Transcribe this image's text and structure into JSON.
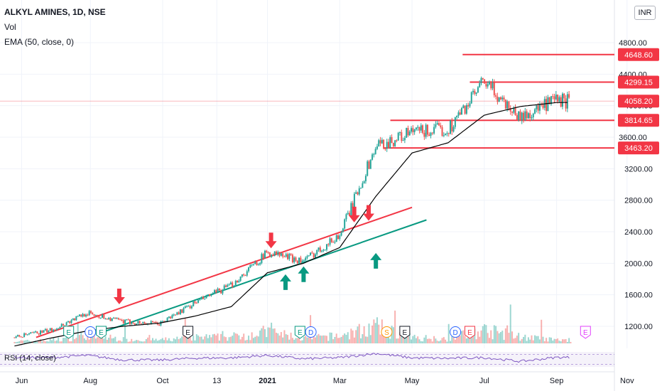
{
  "legend": {
    "title": "ALKYL AMINES, 1D, NSE",
    "vol": "Vol",
    "ema": "EMA (50, close, 0)"
  },
  "currency": "INR",
  "colors": {
    "up": "#26a69a",
    "down": "#ef5350",
    "level": "#f23645",
    "channel_upper": "#f23645",
    "channel_lower": "#089981",
    "ema": "#000000",
    "rsi": "#7e57c2",
    "grid": "#f0f3fa",
    "axis_text": "#131722"
  },
  "chart_data": [
    {
      "type": "line",
      "title": "ALKYL AMINES, 1D, NSE",
      "x_ticks": [
        "Jun",
        "Aug",
        "Oct",
        "13",
        "2021",
        "Mar",
        "May",
        "Jul",
        "Sep",
        "Nov"
      ],
      "y_ticks": [
        1200,
        1600,
        2000,
        2400,
        2800,
        3200,
        3600,
        4000,
        4400,
        4800
      ],
      "ylim": [
        1050,
        5050
      ],
      "price_series": {
        "name": "ALKYL AMINES",
        "months": [
          6,
          7,
          8,
          9,
          10,
          11,
          12,
          13,
          14,
          15,
          16,
          17,
          18,
          19,
          20,
          21
        ],
        "close": [
          1060,
          1150,
          1370,
          1260,
          1230,
          1500,
          1720,
          2140,
          2030,
          2360,
          3480,
          3660,
          3700,
          4300,
          3850,
          4058
        ]
      },
      "ema_series": {
        "name": "EMA (50, close, 0)",
        "months": [
          6,
          7,
          8,
          9,
          10,
          11,
          12,
          13,
          14,
          15,
          16,
          17,
          18,
          19,
          20,
          21
        ],
        "values": [
          950,
          1050,
          1140,
          1200,
          1240,
          1330,
          1450,
          1880,
          2000,
          2200,
          2850,
          3400,
          3530,
          3880,
          3990,
          4040
        ]
      },
      "levels": [
        {
          "value": 4648.6,
          "label": "4648.60",
          "from_month": 18.4
        },
        {
          "value": 4299.15,
          "label": "4299.15",
          "from_month": 18.6
        },
        {
          "value": 3814.65,
          "label": "3814.65",
          "from_month": 16.4
        },
        {
          "value": 3463.2,
          "label": "3463.20",
          "from_month": 16.2
        }
      ],
      "last_price": {
        "value": 4058.2,
        "label": "4058.20"
      },
      "trendlines": [
        {
          "name": "upper channel",
          "from": [
            6.6,
            1060
          ],
          "to": [
            17.0,
            2710
          ]
        },
        {
          "name": "lower channel",
          "from": [
            8.4,
            1120
          ],
          "to": [
            17.4,
            2550
          ]
        }
      ],
      "down_arrows": [
        [
          8.9,
          1480
        ],
        [
          13.1,
          2190
        ],
        [
          15.4,
          2520
        ],
        [
          15.8,
          2540
        ]
      ],
      "up_arrows": [
        [
          13.5,
          1860
        ],
        [
          14.0,
          1960
        ],
        [
          16.0,
          2130
        ]
      ],
      "event_markers": [
        {
          "month": 7.5,
          "text": "E",
          "color": "#089981"
        },
        {
          "month": 8.1,
          "text": "D",
          "color": "#2962ff"
        },
        {
          "month": 8.4,
          "text": "E",
          "color": "#089981"
        },
        {
          "month": 10.8,
          "text": "E",
          "color": "#131722"
        },
        {
          "month": 13.9,
          "text": "E",
          "color": "#089981"
        },
        {
          "month": 14.2,
          "text": "D",
          "color": "#2962ff"
        },
        {
          "month": 16.3,
          "text": "S",
          "color": "#ff9800"
        },
        {
          "month": 16.8,
          "text": "E",
          "color": "#131722"
        },
        {
          "month": 18.2,
          "text": "D",
          "color": "#2962ff"
        },
        {
          "month": 18.6,
          "text": "E",
          "color": "#f23645"
        },
        {
          "month": 21.8,
          "text": "E",
          "color": "#e040fb"
        }
      ],
      "volume": {
        "months": [
          6,
          7,
          8,
          9,
          10,
          11,
          12,
          13,
          14,
          15,
          16,
          17,
          18,
          19,
          20,
          21
        ],
        "relative": [
          0.12,
          0.18,
          0.5,
          0.25,
          0.2,
          0.35,
          0.4,
          0.7,
          0.3,
          0.45,
          1.0,
          0.35,
          0.3,
          0.8,
          0.4,
          0.2
        ]
      }
    },
    {
      "type": "line",
      "title": "RSI (14, close)",
      "series": [
        {
          "name": "RSI (14, close)",
          "months": [
            6,
            7,
            8,
            9,
            10,
            11,
            12,
            13,
            14,
            15,
            16,
            17,
            18,
            19,
            20,
            21
          ],
          "values": [
            58,
            57,
            66,
            48,
            47,
            55,
            56,
            66,
            52,
            57,
            74,
            56,
            54,
            57,
            42,
            58
          ]
        }
      ],
      "ylim": [
        20,
        80
      ],
      "bands": [
        30,
        70
      ]
    }
  ]
}
